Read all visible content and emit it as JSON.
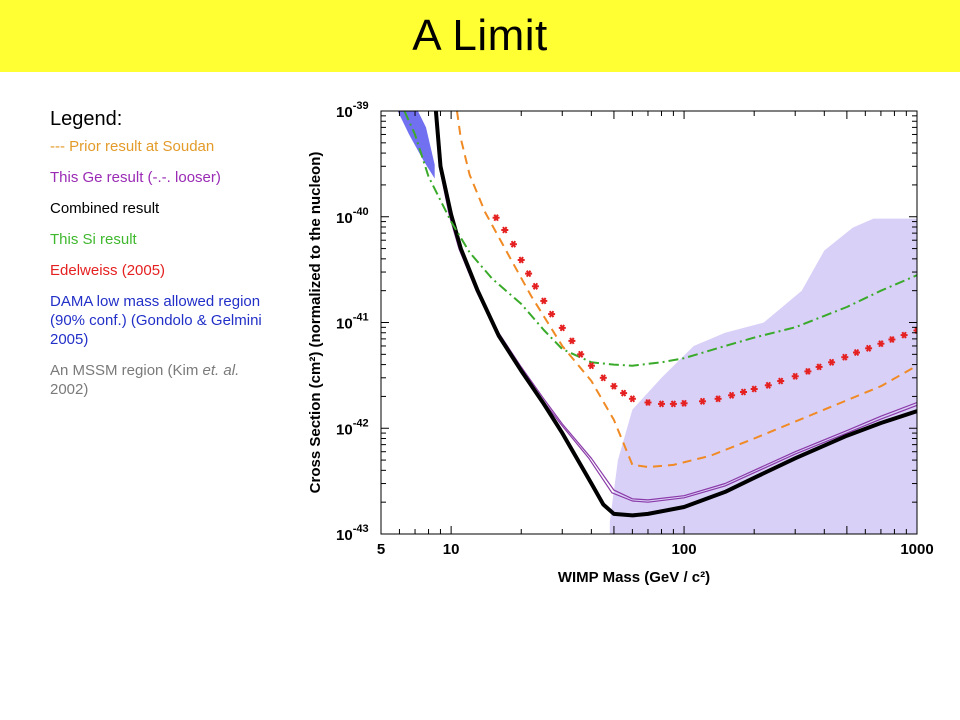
{
  "slide": {
    "title": "A Limit"
  },
  "legend": {
    "heading": "Legend:",
    "entries": [
      {
        "text": "--- Prior result at Soudan",
        "color": "#e39b2a"
      },
      {
        "text": "This Ge result (-.-. looser)",
        "color": "#9a2bb5"
      },
      {
        "text": "Combined result",
        "color": "#000000"
      },
      {
        "text": "This Si result",
        "color": "#3fb82e"
      },
      {
        "text": "Edelweiss (2005)",
        "color": "#e52020"
      },
      {
        "text": "DAMA low mass allowed region (90% conf.) (Gondolo & Gelmini 2005)",
        "color": "#2230c8"
      },
      {
        "text_parts": [
          "An MSSM region (Kim ",
          "et. al.",
          " 2002)"
        ],
        "color": "#7a7a7a"
      }
    ]
  },
  "chart_data": {
    "type": "line",
    "xlabel": "WIMP Mass (GeV / c²)",
    "ylabel": "Cross Section (cm²) (normalized to the nucleon)",
    "xscale": "log",
    "yscale": "log",
    "xlim": [
      5,
      1000
    ],
    "ylim": [
      1e-43,
      1e-39
    ],
    "x_ticks": [
      {
        "value": 5,
        "label": "5"
      },
      {
        "value": 10,
        "label": "10"
      },
      {
        "value": 100,
        "label": "100"
      },
      {
        "value": 1000,
        "label": "1000"
      }
    ],
    "y_ticks": [
      {
        "value": 1e-39,
        "base": "10",
        "exp": "-39"
      },
      {
        "value": 1e-40,
        "base": "10",
        "exp": "-40"
      },
      {
        "value": 1e-41,
        "base": "10",
        "exp": "-41"
      },
      {
        "value": 1e-42,
        "base": "10",
        "exp": "-42"
      },
      {
        "value": 1e-43,
        "base": "10",
        "exp": "-43"
      }
    ],
    "regions": [
      {
        "name": "MSSM region (Kim et al. 2002)",
        "color": "#d9d0f8",
        "points": [
          [
            48,
            1e-43
          ],
          [
            48,
            1.3e-43
          ],
          [
            52,
            5e-43
          ],
          [
            60,
            1.5e-42
          ],
          [
            80,
            3e-42
          ],
          [
            110,
            6e-42
          ],
          [
            150,
            8e-42
          ],
          [
            220,
            1e-41
          ],
          [
            320,
            2e-41
          ],
          [
            400,
            4.8e-41
          ],
          [
            530,
            7.9e-41
          ],
          [
            650,
            9.6e-41
          ],
          [
            1000,
            9.6e-41
          ],
          [
            1000,
            1e-43
          ]
        ]
      },
      {
        "name": "DAMA low mass allowed region",
        "color": "#7070f0",
        "points": [
          [
            5.9,
            1e-39
          ],
          [
            7.2,
            1e-39
          ],
          [
            7.8,
            7e-40
          ],
          [
            8.5,
            3.1e-40
          ],
          [
            8.5,
            2.3e-40
          ],
          [
            7.6,
            3.4e-40
          ],
          [
            6.6,
            6e-40
          ]
        ]
      }
    ],
    "series": [
      {
        "name": "Prior result at Soudan",
        "style": "dashed",
        "color": "#f08a24",
        "width": 2,
        "points": [
          [
            10.6,
            1e-39
          ],
          [
            11,
            5.5e-40
          ],
          [
            12,
            2.5e-40
          ],
          [
            14,
            1.1e-40
          ],
          [
            18,
            4e-41
          ],
          [
            22,
            1.8e-41
          ],
          [
            30,
            6e-42
          ],
          [
            40,
            2.8e-42
          ],
          [
            50,
            1.2e-42
          ],
          [
            60,
            4.5e-43
          ],
          [
            70,
            4.3e-43
          ],
          [
            90,
            4.5e-43
          ],
          [
            130,
            5.5e-43
          ],
          [
            200,
            8e-43
          ],
          [
            400,
            1.5e-42
          ],
          [
            700,
            2.5e-42
          ],
          [
            1000,
            3.9e-42
          ]
        ]
      },
      {
        "name": "This Ge result",
        "style": "solid",
        "color": "#8a3aa8",
        "width": 1.2,
        "points": [
          [
            8.7,
            1e-39
          ],
          [
            9.1,
            3e-40
          ],
          [
            10,
            1.05e-40
          ],
          [
            11,
            5e-41
          ],
          [
            13,
            2e-41
          ],
          [
            16,
            8e-42
          ],
          [
            20,
            3.8e-42
          ],
          [
            25,
            1.9e-42
          ],
          [
            30,
            1.1e-42
          ],
          [
            40,
            5.2e-43
          ],
          [
            50,
            2.6e-43
          ],
          [
            60,
            2.15e-43
          ],
          [
            70,
            2.1e-43
          ],
          [
            100,
            2.3e-43
          ],
          [
            150,
            3e-43
          ],
          [
            200,
            4e-43
          ],
          [
            300,
            6e-43
          ],
          [
            500,
            9.5e-43
          ],
          [
            700,
            1.3e-42
          ],
          [
            1000,
            1.75e-42
          ]
        ]
      },
      {
        "name": "This Ge result (looser)",
        "style": "solid",
        "color": "#8a3aa8",
        "width": 1.2,
        "points": [
          [
            8.6,
            1e-39
          ],
          [
            8.9,
            3e-40
          ],
          [
            9.8,
            1.05e-40
          ],
          [
            10.8,
            5e-41
          ],
          [
            12.8,
            2e-41
          ],
          [
            15.7,
            8e-42
          ],
          [
            19.5,
            3.8e-42
          ],
          [
            24.5,
            1.9e-42
          ],
          [
            29.5,
            1.1e-42
          ],
          [
            39,
            5.2e-43
          ],
          [
            49,
            2.45e-43
          ],
          [
            60,
            2.05e-43
          ],
          [
            70,
            2e-43
          ],
          [
            100,
            2.2e-43
          ],
          [
            150,
            2.85e-43
          ],
          [
            200,
            3.8e-43
          ],
          [
            300,
            5.7e-43
          ],
          [
            500,
            9e-43
          ],
          [
            700,
            1.22e-42
          ],
          [
            1000,
            1.65e-42
          ]
        ]
      },
      {
        "name": "Combined result",
        "style": "solid",
        "color": "#000000",
        "width": 4,
        "points": [
          [
            8.6,
            1e-39
          ],
          [
            9,
            3e-40
          ],
          [
            10,
            1.05e-40
          ],
          [
            11,
            5e-41
          ],
          [
            13,
            2e-41
          ],
          [
            16,
            7.5e-42
          ],
          [
            20,
            3.5e-42
          ],
          [
            25,
            1.7e-42
          ],
          [
            30,
            9e-43
          ],
          [
            35,
            5e-43
          ],
          [
            40,
            3e-43
          ],
          [
            45,
            1.9e-43
          ],
          [
            50,
            1.55e-43
          ],
          [
            60,
            1.5e-43
          ],
          [
            70,
            1.55e-43
          ],
          [
            100,
            1.8e-43
          ],
          [
            150,
            2.5e-43
          ],
          [
            200,
            3.4e-43
          ],
          [
            300,
            5.2e-43
          ],
          [
            500,
            8.5e-43
          ],
          [
            700,
            1.12e-42
          ],
          [
            1000,
            1.45e-42
          ]
        ]
      },
      {
        "name": "This Si result",
        "style": "dashdot",
        "color": "#3aaa2a",
        "width": 2,
        "points": [
          [
            6.3,
            1e-39
          ],
          [
            7,
            6e-40
          ],
          [
            8,
            2.4e-40
          ],
          [
            10,
            9e-41
          ],
          [
            12,
            4.6e-41
          ],
          [
            15,
            2.6e-41
          ],
          [
            20,
            1.5e-41
          ],
          [
            25,
            8.5e-42
          ],
          [
            30,
            5.6e-42
          ],
          [
            40,
            4.2e-42
          ],
          [
            50,
            4e-42
          ],
          [
            60,
            3.9e-42
          ],
          [
            80,
            4.2e-42
          ],
          [
            100,
            4.6e-42
          ],
          [
            150,
            6e-42
          ],
          [
            200,
            7.2e-42
          ],
          [
            300,
            9e-42
          ],
          [
            500,
            1.4e-41
          ],
          [
            700,
            2e-41
          ],
          [
            1000,
            2.8e-41
          ]
        ]
      },
      {
        "name": "Edelweiss (2005)",
        "style": "markers",
        "color": "#e52020",
        "width": 0,
        "points": [
          [
            15.6,
            9.8e-41
          ],
          [
            17,
            7.5e-41
          ],
          [
            18.5,
            5.5e-41
          ],
          [
            20,
            3.9e-41
          ],
          [
            21.5,
            2.9e-41
          ],
          [
            23,
            2.2e-41
          ],
          [
            25,
            1.6e-41
          ],
          [
            27,
            1.2e-41
          ],
          [
            30,
            8.9e-42
          ],
          [
            33,
            6.7e-42
          ],
          [
            36,
            5e-42
          ],
          [
            40,
            3.9e-42
          ],
          [
            45,
            3e-42
          ],
          [
            50,
            2.5e-42
          ],
          [
            55,
            2.15e-42
          ],
          [
            60,
            1.9e-42
          ],
          [
            70,
            1.75e-42
          ],
          [
            80,
            1.7e-42
          ],
          [
            90,
            1.7e-42
          ],
          [
            100,
            1.72e-42
          ],
          [
            120,
            1.8e-42
          ],
          [
            140,
            1.9e-42
          ],
          [
            160,
            2.05e-42
          ],
          [
            180,
            2.2e-42
          ],
          [
            200,
            2.35e-42
          ],
          [
            230,
            2.55e-42
          ],
          [
            260,
            2.8e-42
          ],
          [
            300,
            3.1e-42
          ],
          [
            340,
            3.45e-42
          ],
          [
            380,
            3.8e-42
          ],
          [
            430,
            4.2e-42
          ],
          [
            490,
            4.7e-42
          ],
          [
            550,
            5.2e-42
          ],
          [
            620,
            5.7e-42
          ],
          [
            700,
            6.3e-42
          ],
          [
            780,
            6.9e-42
          ],
          [
            880,
            7.6e-42
          ],
          [
            1000,
            8.4e-42
          ]
        ]
      }
    ]
  }
}
